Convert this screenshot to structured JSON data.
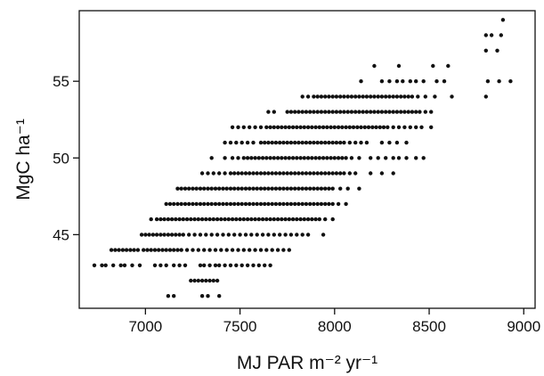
{
  "chart_data": {
    "type": "scatter",
    "xlabel": "MJ PAR m⁻² yr⁻¹",
    "ylabel": "MgC ha⁻¹",
    "xlim": [
      6650,
      9060
    ],
    "ylim": [
      40.2,
      59.6
    ],
    "xticks": [
      7000,
      7500,
      8000,
      8500,
      9000
    ],
    "yticks": [
      45,
      50,
      55
    ],
    "grid": false,
    "legend": "none",
    "marker_color": "#111111",
    "point_rows": [
      {
        "y": 41,
        "x": [
          7120,
          7150,
          7300,
          7330,
          7390
        ]
      },
      {
        "y": 42,
        "x": [
          7240,
          7260,
          7280,
          7300,
          7320,
          7340,
          7360,
          7380
        ]
      },
      {
        "y": 43,
        "x": [
          6730,
          6770,
          6790,
          6830,
          6870,
          6890,
          6930,
          6970,
          7050,
          7080,
          7110,
          7150,
          7180,
          7210,
          7290,
          7310,
          7340,
          7370,
          7390,
          7420,
          7450,
          7480,
          7510,
          7540,
          7570,
          7600,
          7630,
          7660
        ]
      },
      {
        "y": 44,
        "x": [
          6820,
          6840,
          6860,
          6880,
          6900,
          6920,
          6940,
          6960,
          6990,
          7010,
          7030,
          7050,
          7070,
          7090,
          7110,
          7130,
          7150,
          7170,
          7190,
          7220,
          7250,
          7280,
          7310,
          7340,
          7370,
          7400,
          7430,
          7460,
          7490,
          7520,
          7550,
          7580,
          7610,
          7640,
          7670,
          7700,
          7730,
          7760
        ]
      },
      {
        "y": 45,
        "x": [
          6980,
          7000,
          7020,
          7040,
          7060,
          7080,
          7100,
          7120,
          7140,
          7160,
          7180,
          7200,
          7230,
          7260,
          7290,
          7320,
          7350,
          7380,
          7410,
          7440,
          7470,
          7500,
          7530,
          7560,
          7590,
          7620,
          7650,
          7680,
          7710,
          7740,
          7770,
          7800,
          7830,
          7860,
          7940
        ]
      },
      {
        "y": 46,
        "x": [
          7030,
          7060,
          7080,
          7100,
          7120,
          7140,
          7160,
          7180,
          7200,
          7220,
          7240,
          7260,
          7280,
          7300,
          7320,
          7340,
          7360,
          7380,
          7400,
          7420,
          7440,
          7460,
          7480,
          7500,
          7520,
          7540,
          7560,
          7580,
          7600,
          7620,
          7640,
          7660,
          7680,
          7700,
          7720,
          7740,
          7760,
          7780,
          7800,
          7820,
          7840,
          7860,
          7880,
          7900,
          7920,
          7950,
          7990
        ]
      },
      {
        "y": 47,
        "x": [
          7110,
          7130,
          7150,
          7170,
          7190,
          7210,
          7230,
          7250,
          7270,
          7290,
          7310,
          7330,
          7350,
          7370,
          7390,
          7410,
          7430,
          7450,
          7470,
          7490,
          7510,
          7530,
          7550,
          7570,
          7590,
          7610,
          7630,
          7650,
          7670,
          7690,
          7710,
          7730,
          7750,
          7770,
          7790,
          7810,
          7830,
          7850,
          7870,
          7890,
          7910,
          7930,
          7950,
          7970,
          7990,
          8020,
          8060
        ]
      },
      {
        "y": 48,
        "x": [
          7170,
          7190,
          7210,
          7230,
          7250,
          7270,
          7290,
          7310,
          7330,
          7350,
          7370,
          7390,
          7410,
          7430,
          7450,
          7470,
          7490,
          7510,
          7530,
          7550,
          7570,
          7590,
          7610,
          7630,
          7650,
          7670,
          7690,
          7710,
          7730,
          7750,
          7770,
          7790,
          7810,
          7830,
          7850,
          7870,
          7890,
          7910,
          7930,
          7950,
          7970,
          7990,
          8030,
          8070,
          8130
        ]
      },
      {
        "y": 49,
        "x": [
          7300,
          7330,
          7360,
          7390,
          7420,
          7450,
          7470,
          7490,
          7510,
          7530,
          7550,
          7570,
          7590,
          7610,
          7630,
          7650,
          7670,
          7690,
          7710,
          7730,
          7750,
          7770,
          7790,
          7810,
          7830,
          7850,
          7870,
          7890,
          7910,
          7930,
          7950,
          7970,
          7990,
          8010,
          8030,
          8050,
          8080,
          8110,
          8190,
          8250,
          8310
        ]
      },
      {
        "y": 50,
        "x": [
          7350,
          7420,
          7460,
          7490,
          7520,
          7540,
          7560,
          7580,
          7600,
          7620,
          7640,
          7660,
          7680,
          7700,
          7720,
          7740,
          7760,
          7780,
          7800,
          7820,
          7840,
          7860,
          7880,
          7900,
          7920,
          7940,
          7960,
          7980,
          8000,
          8020,
          8040,
          8060,
          8090,
          8130,
          8190,
          8230,
          8270,
          8310,
          8340,
          8380,
          8430,
          8470
        ]
      },
      {
        "y": 51,
        "x": [
          7420,
          7450,
          7480,
          7510,
          7540,
          7570,
          7610,
          7630,
          7650,
          7670,
          7690,
          7710,
          7730,
          7750,
          7770,
          7790,
          7810,
          7830,
          7850,
          7870,
          7890,
          7910,
          7930,
          7950,
          7970,
          7990,
          8010,
          8030,
          8050,
          8080,
          8110,
          8140,
          8170,
          8250,
          8290,
          8330,
          8380
        ]
      },
      {
        "y": 52,
        "x": [
          7460,
          7490,
          7520,
          7550,
          7580,
          7610,
          7640,
          7660,
          7680,
          7700,
          7720,
          7740,
          7760,
          7780,
          7800,
          7820,
          7840,
          7860,
          7880,
          7900,
          7920,
          7940,
          7960,
          7980,
          8000,
          8020,
          8040,
          8060,
          8080,
          8100,
          8120,
          8140,
          8160,
          8180,
          8200,
          8220,
          8240,
          8260,
          8280,
          8310,
          8340,
          8370,
          8400,
          8430,
          8460,
          8510
        ]
      },
      {
        "y": 53,
        "x": [
          7650,
          7680,
          7750,
          7770,
          7790,
          7810,
          7830,
          7850,
          7870,
          7890,
          7910,
          7930,
          7950,
          7970,
          7990,
          8010,
          8030,
          8050,
          8070,
          8090,
          8110,
          8130,
          8150,
          8170,
          8190,
          8210,
          8230,
          8250,
          8270,
          8290,
          8310,
          8330,
          8350,
          8370,
          8390,
          8410,
          8430,
          8450,
          8480,
          8510
        ]
      },
      {
        "y": 54,
        "x": [
          7830,
          7860,
          7890,
          7910,
          7930,
          7950,
          7970,
          7990,
          8010,
          8030,
          8050,
          8070,
          8090,
          8110,
          8130,
          8150,
          8170,
          8190,
          8210,
          8230,
          8250,
          8270,
          8290,
          8310,
          8330,
          8350,
          8370,
          8390,
          8410,
          8440,
          8480,
          8530,
          8620,
          8800
        ]
      },
      {
        "y": 55,
        "x": [
          8140,
          8250,
          8290,
          8330,
          8360,
          8400,
          8430,
          8470,
          8540,
          8580,
          8810,
          8870,
          8930
        ]
      },
      {
        "y": 56,
        "x": [
          8210,
          8340,
          8520,
          8600
        ]
      },
      {
        "y": 57,
        "x": [
          8800,
          8860
        ]
      },
      {
        "y": 58,
        "x": [
          8800,
          8830,
          8880
        ]
      },
      {
        "y": 59,
        "x": [
          8890
        ]
      }
    ]
  }
}
